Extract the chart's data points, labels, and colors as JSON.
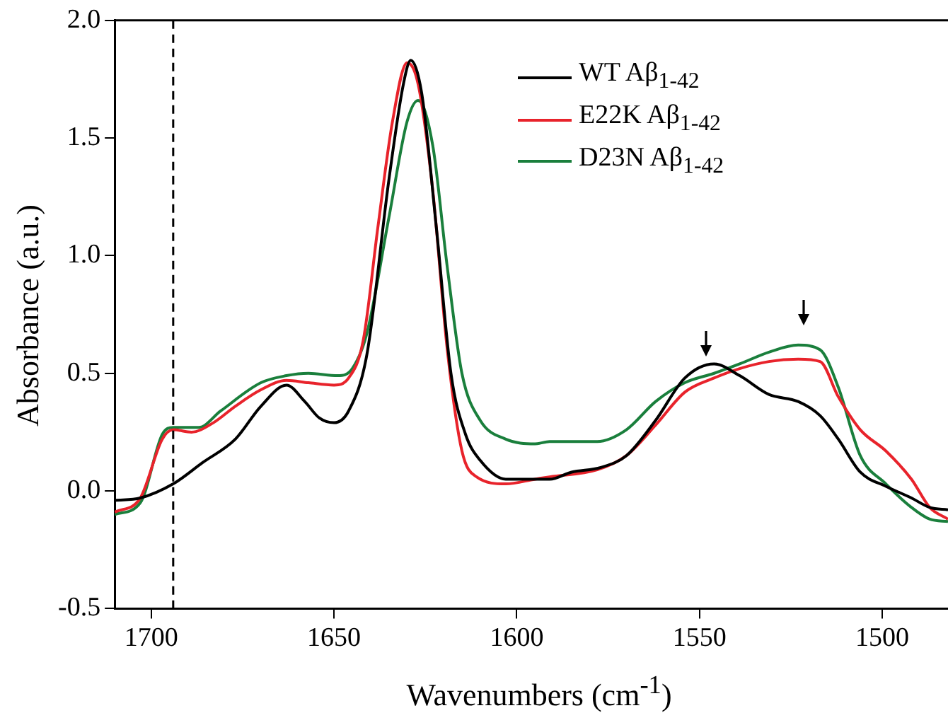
{
  "chart_data": {
    "type": "line",
    "xlabel": "Wavenumbers (cm$^{-1}$)",
    "ylabel": "Absorbance (a.u.)",
    "xlim": [
      1710,
      1482
    ],
    "xticks": [
      1700,
      1650,
      1600,
      1550,
      1500
    ],
    "ylim": [
      -0.5,
      2.0
    ],
    "yticks": [
      {
        "value": -0.5,
        "label": "-0.5"
      },
      {
        "value": 0,
        "label": "0.0"
      },
      {
        "value": 0.5,
        "label": "0.5"
      },
      {
        "value": 1,
        "label": "1.0"
      },
      {
        "value": 1.5,
        "label": "1.5"
      },
      {
        "value": 2,
        "label": "2.0"
      }
    ],
    "grid": false,
    "legend": "top right",
    "marker": "none",
    "line_style": "solid",
    "ref_lines": [
      {
        "axis": "x",
        "value": 1694,
        "color": "#000000",
        "line_style": "dashed"
      }
    ],
    "series": [
      {
        "name": "WT Aβ$_{1-42}$",
        "color": "#000000",
        "x": [
          1710,
          1703,
          1694,
          1686,
          1677,
          1670,
          1663,
          1658,
          1654,
          1650,
          1646,
          1641,
          1635,
          1631,
          1629,
          1626,
          1622,
          1618,
          1614,
          1610,
          1603,
          1595,
          1591,
          1585,
          1577,
          1570,
          1562,
          1554,
          1546,
          1539,
          1531,
          1523,
          1517,
          1512,
          1506,
          1499,
          1492,
          1487,
          1482
        ],
        "values": [
          -0.04,
          -0.03,
          0.03,
          0.12,
          0.22,
          0.36,
          0.45,
          0.38,
          0.31,
          0.29,
          0.34,
          0.58,
          1.32,
          1.73,
          1.83,
          1.69,
          1.12,
          0.5,
          0.24,
          0.13,
          0.05,
          0.05,
          0.05,
          0.08,
          0.1,
          0.15,
          0.3,
          0.48,
          0.54,
          0.49,
          0.41,
          0.38,
          0.32,
          0.22,
          0.08,
          0.02,
          -0.03,
          -0.07,
          -0.08
        ]
      },
      {
        "name": "E22K Aβ$_{1-42}$",
        "color": "#e8232b",
        "x": [
          1710,
          1703,
          1697,
          1694,
          1689,
          1683,
          1677,
          1670,
          1663,
          1657,
          1650,
          1646,
          1642,
          1638,
          1634,
          1630,
          1627,
          1623,
          1619,
          1615,
          1611,
          1603,
          1595,
          1591,
          1578,
          1570,
          1562,
          1554,
          1546,
          1539,
          1531,
          1523,
          1517,
          1512,
          1506,
          1499,
          1492,
          1487,
          1482
        ],
        "values": [
          -0.09,
          -0.03,
          0.22,
          0.26,
          0.25,
          0.29,
          0.36,
          0.43,
          0.47,
          0.46,
          0.45,
          0.48,
          0.64,
          1.12,
          1.57,
          1.82,
          1.73,
          1.28,
          0.6,
          0.17,
          0.06,
          0.03,
          0.05,
          0.06,
          0.09,
          0.15,
          0.28,
          0.42,
          0.48,
          0.52,
          0.55,
          0.56,
          0.55,
          0.4,
          0.26,
          0.17,
          0.05,
          -0.07,
          -0.12
        ]
      },
      {
        "name": "D23N Aβ$_{1-42}$",
        "color": "#1a7f3c",
        "x": [
          1710,
          1703,
          1697,
          1694,
          1687,
          1681,
          1670,
          1663,
          1657,
          1649,
          1645,
          1641,
          1635,
          1630,
          1627,
          1623,
          1619,
          1615,
          1610,
          1603,
          1595,
          1591,
          1578,
          1570,
          1562,
          1554,
          1546,
          1539,
          1531,
          1523,
          1517,
          1512,
          1506,
          1499,
          1492,
          1487,
          1482
        ],
        "values": [
          -0.1,
          -0.05,
          0.24,
          0.27,
          0.27,
          0.34,
          0.46,
          0.49,
          0.5,
          0.49,
          0.52,
          0.67,
          1.16,
          1.57,
          1.66,
          1.47,
          0.95,
          0.5,
          0.3,
          0.22,
          0.2,
          0.21,
          0.21,
          0.26,
          0.38,
          0.46,
          0.5,
          0.54,
          0.59,
          0.62,
          0.6,
          0.44,
          0.15,
          0.03,
          -0.07,
          -0.12,
          -0.13
        ]
      }
    ]
  }
}
